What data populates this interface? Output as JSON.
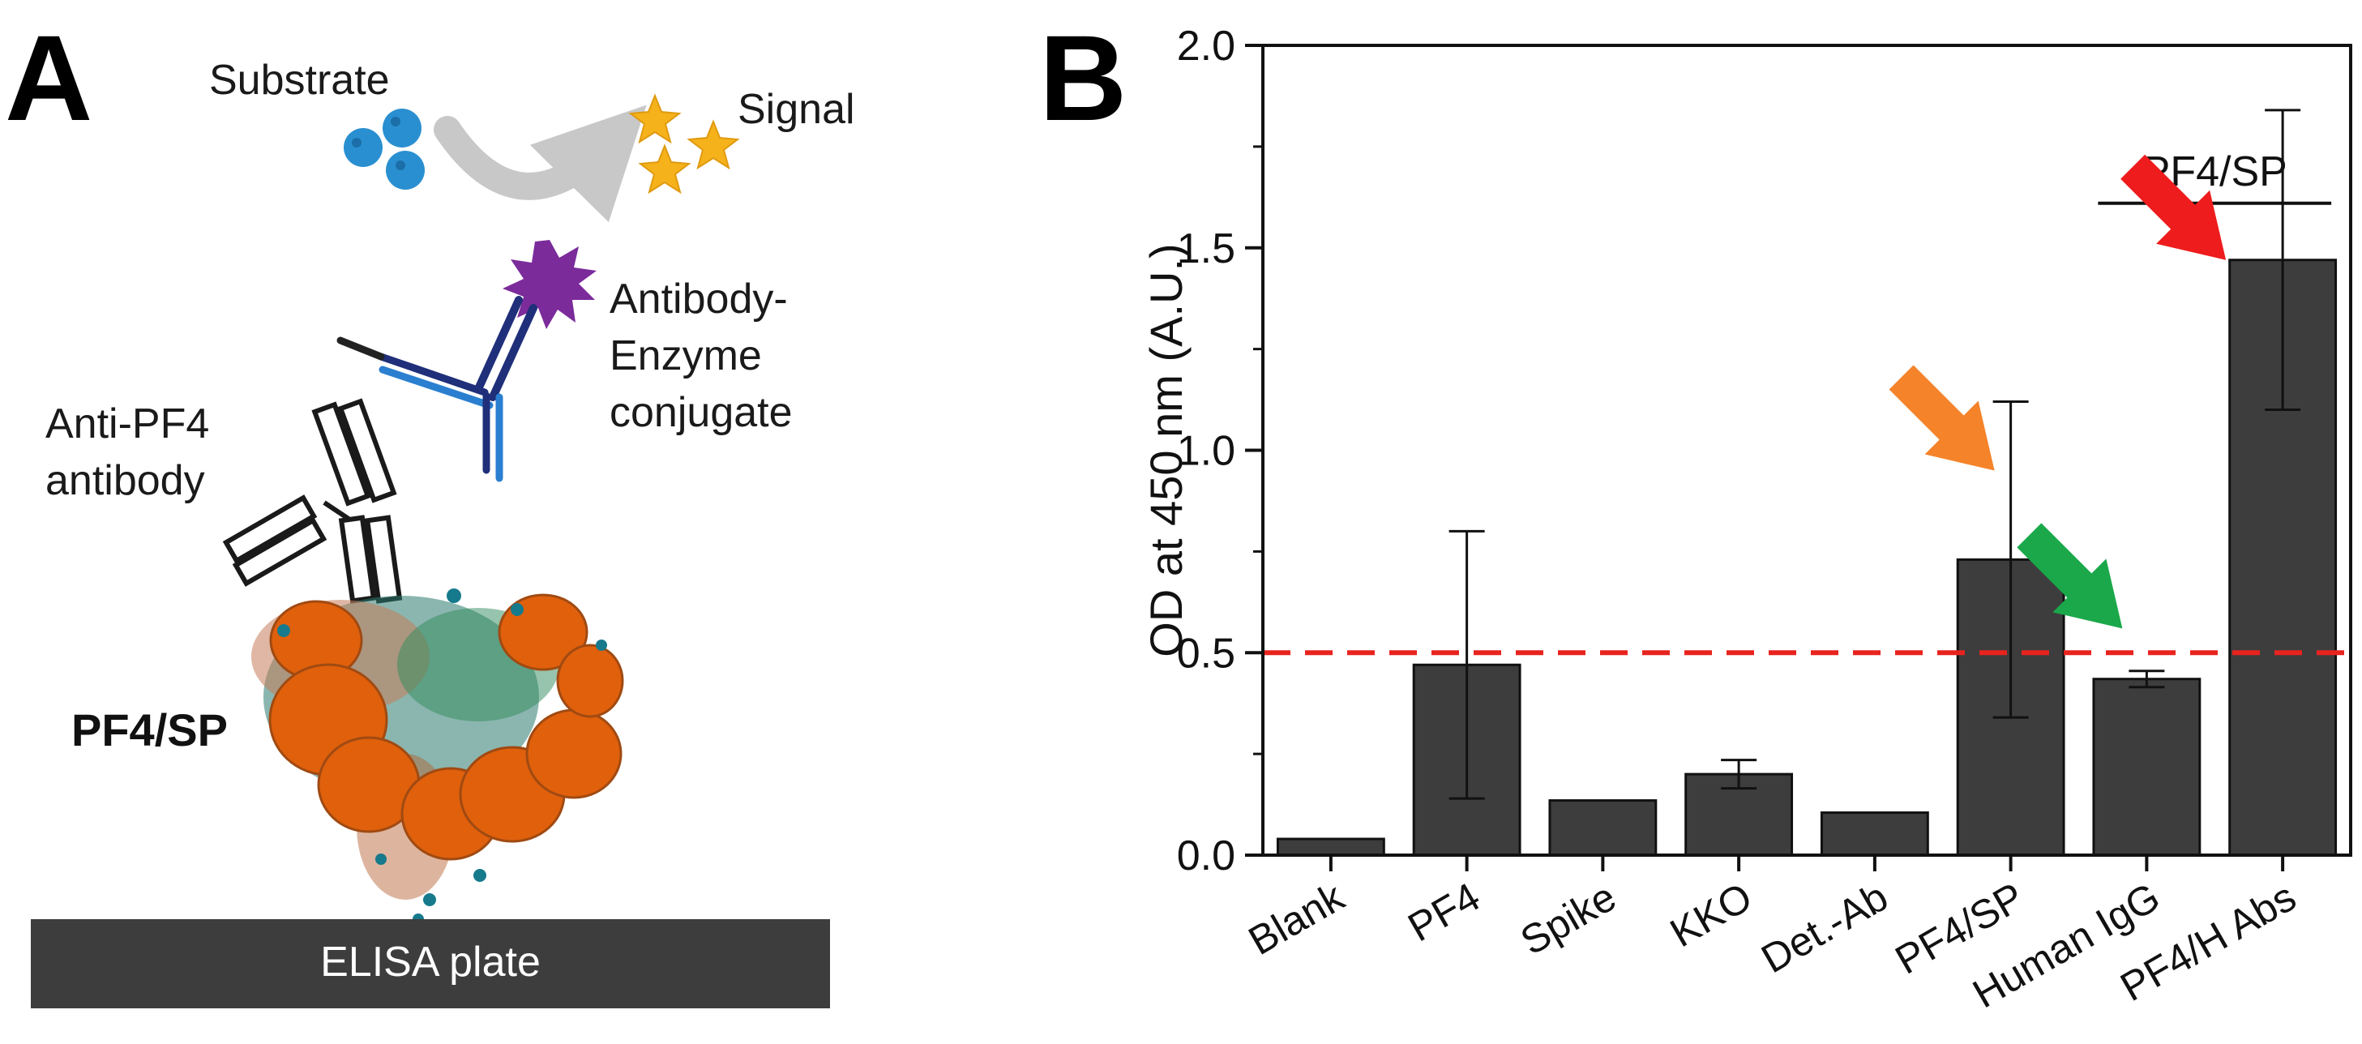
{
  "panel_a": {
    "letter": "A",
    "substrate_label": "Substrate",
    "signal_label": "Signal",
    "conjugate_label_line1": "Antibody-",
    "conjugate_label_line2": "Enzyme",
    "conjugate_label_line3": "conjugate",
    "anti_pf4_line1": "Anti-PF4",
    "anti_pf4_line2": "antibody",
    "complex_label": "PF4/SP",
    "plate_label": "ELISA plate"
  },
  "panel_b": {
    "letter": "B"
  },
  "colors": {
    "bar": "#3d3d3d",
    "threshold": "#e8231f",
    "arrow_orange": "#f5832a",
    "arrow_green": "#1aa84a",
    "arrow_red": "#ee1c1c",
    "plate": "#3d3d3d",
    "sphere": "#e0600c",
    "substrate": "#2a8fd0",
    "star": "#f6b21a",
    "enzyme": "#7b2b9a"
  },
  "chart_data": {
    "type": "bar",
    "title": "",
    "xlabel": "",
    "ylabel": "OD at 450 nm (A.U.)",
    "ylim": [
      0,
      2.0
    ],
    "yticks": [
      "0.0",
      "0.5",
      "1.0",
      "1.5",
      "2.0"
    ],
    "categories": [
      "Blank",
      "PF4",
      "Spike",
      "KKO",
      "Det.-Ab",
      "PF4/SP",
      "Human IgG",
      "PF4/H Abs"
    ],
    "values": [
      0.04,
      0.47,
      0.135,
      0.2,
      0.105,
      0.73,
      0.435,
      1.47
    ],
    "errors": [
      0.0,
      0.33,
      0.0,
      0.035,
      0.0,
      0.39,
      0.02,
      0.37
    ],
    "threshold": 0.5,
    "bracket_label": "PF4/SP",
    "bracket_over": [
      "Human IgG",
      "PF4/H Abs"
    ],
    "highlight_arrows": [
      {
        "category": "PF4/SP",
        "color": "orange"
      },
      {
        "category": "Human IgG",
        "color": "green"
      },
      {
        "category": "PF4/H Abs",
        "color": "red"
      }
    ]
  }
}
